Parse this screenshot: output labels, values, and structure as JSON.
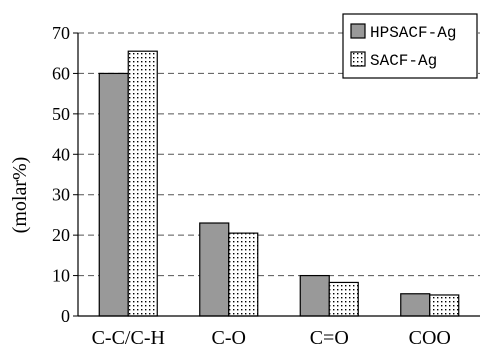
{
  "chart_data": {
    "type": "bar",
    "categories": [
      "C-C/C-H",
      "C-O",
      "C=O",
      "COO"
    ],
    "series": [
      {
        "name": "HPSACF-Ag",
        "values": [
          60,
          23,
          10,
          5.5
        ],
        "fill": "#999999",
        "pattern": "solid"
      },
      {
        "name": "SACF-Ag",
        "values": [
          65.5,
          20.5,
          8.3,
          5.2
        ],
        "fill": "#ffffff",
        "pattern": "dots"
      }
    ],
    "title": "",
    "xlabel": "",
    "ylabel": "(molar%)",
    "ylim": [
      0,
      70
    ],
    "yticks": [
      0,
      10,
      20,
      30,
      40,
      50,
      60,
      70
    ],
    "grid": true,
    "grid_style": "dashed",
    "legend_position": "top-right"
  }
}
